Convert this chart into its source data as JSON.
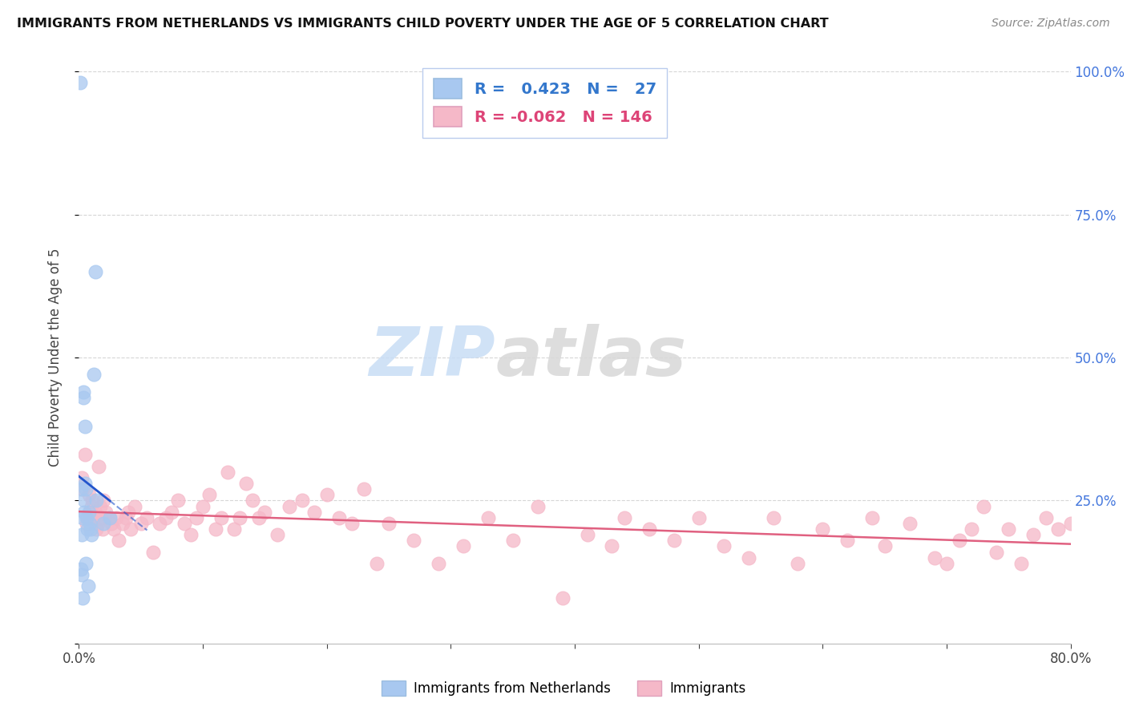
{
  "title": "IMMIGRANTS FROM NETHERLANDS VS IMMIGRANTS CHILD POVERTY UNDER THE AGE OF 5 CORRELATION CHART",
  "source": "Source: ZipAtlas.com",
  "ylabel": "Child Poverty Under the Age of 5",
  "legend_label1": "Immigrants from Netherlands",
  "legend_label2": "Immigrants",
  "R1": 0.423,
  "N1": 27,
  "R2": -0.062,
  "N2": 146,
  "color_blue": "#a8c8f0",
  "color_pink": "#f5b8c8",
  "line_blue": "#2255cc",
  "line_pink": "#e06080",
  "watermark_zip": "ZIP",
  "watermark_atlas": "atlas",
  "background_color": "#ffffff",
  "grid_color": "#cccccc",
  "blue_scatter_x": [
    0.12,
    0.14,
    0.18,
    0.22,
    0.25,
    0.28,
    0.3,
    0.35,
    0.38,
    0.42,
    0.45,
    0.48,
    0.52,
    0.55,
    0.58,
    0.65,
    0.68,
    0.72,
    0.82,
    0.85,
    0.92,
    1.0,
    1.2,
    1.3,
    1.4,
    2.0,
    2.5
  ],
  "blue_scatter_y": [
    98.0,
    13.0,
    27.0,
    19.0,
    12.0,
    8.0,
    22.0,
    44.0,
    43.0,
    25.0,
    23.0,
    38.0,
    28.0,
    27.0,
    14.0,
    22.0,
    20.0,
    10.0,
    23.0,
    21.0,
    20.0,
    19.0,
    47.0,
    65.0,
    25.0,
    21.0,
    22.0
  ],
  "pink_scatter_x": [
    0.2,
    0.3,
    0.5,
    0.6,
    0.7,
    0.8,
    0.9,
    1.0,
    1.1,
    1.2,
    1.3,
    1.4,
    1.5,
    1.6,
    1.7,
    1.8,
    1.9,
    2.0,
    2.2,
    2.4,
    2.6,
    2.8,
    3.0,
    3.2,
    3.5,
    3.8,
    4.0,
    4.2,
    4.5,
    5.0,
    5.5,
    6.0,
    6.5,
    7.0,
    7.5,
    8.0,
    8.5,
    9.0,
    9.5,
    10.0,
    10.5,
    11.0,
    11.5,
    12.0,
    12.5,
    13.0,
    13.5,
    14.0,
    14.5,
    15.0,
    16.0,
    17.0,
    18.0,
    19.0,
    20.0,
    21.0,
    22.0,
    23.0,
    24.0,
    25.0,
    27.0,
    29.0,
    31.0,
    33.0,
    35.0,
    37.0,
    39.0,
    41.0,
    43.0,
    44.0,
    46.0,
    48.0,
    50.0,
    52.0,
    54.0,
    56.0,
    58.0,
    60.0,
    62.0,
    64.0,
    65.0,
    67.0,
    69.0,
    70.0,
    71.0,
    72.0,
    73.0,
    74.0,
    75.0,
    76.0,
    77.0,
    78.0,
    79.0,
    80.0
  ],
  "pink_scatter_y": [
    29.0,
    27.0,
    33.0,
    21.0,
    22.0,
    26.0,
    23.0,
    24.0,
    25.0,
    22.0,
    23.0,
    20.0,
    21.0,
    31.0,
    24.0,
    22.0,
    20.0,
    25.0,
    23.0,
    22.0,
    21.0,
    20.0,
    22.0,
    18.0,
    21.0,
    22.0,
    23.0,
    20.0,
    24.0,
    21.0,
    22.0,
    16.0,
    21.0,
    22.0,
    23.0,
    25.0,
    21.0,
    19.0,
    22.0,
    24.0,
    26.0,
    20.0,
    22.0,
    30.0,
    20.0,
    22.0,
    28.0,
    25.0,
    22.0,
    23.0,
    19.0,
    24.0,
    25.0,
    23.0,
    26.0,
    22.0,
    21.0,
    27.0,
    14.0,
    21.0,
    18.0,
    14.0,
    17.0,
    22.0,
    18.0,
    24.0,
    8.0,
    19.0,
    17.0,
    22.0,
    20.0,
    18.0,
    22.0,
    17.0,
    15.0,
    22.0,
    14.0,
    20.0,
    18.0,
    22.0,
    17.0,
    21.0,
    15.0,
    14.0,
    18.0,
    20.0,
    24.0,
    16.0,
    20.0,
    14.0,
    19.0,
    22.0,
    20.0,
    21.0
  ],
  "xlim": [
    0.0,
    80.0
  ],
  "ylim": [
    0.0,
    100.0
  ],
  "xtick_positions": [
    0.0,
    10.0,
    20.0,
    30.0,
    40.0,
    50.0,
    60.0,
    70.0,
    80.0
  ],
  "ytick_positions": [
    0.0,
    25.0,
    50.0,
    75.0,
    100.0
  ]
}
